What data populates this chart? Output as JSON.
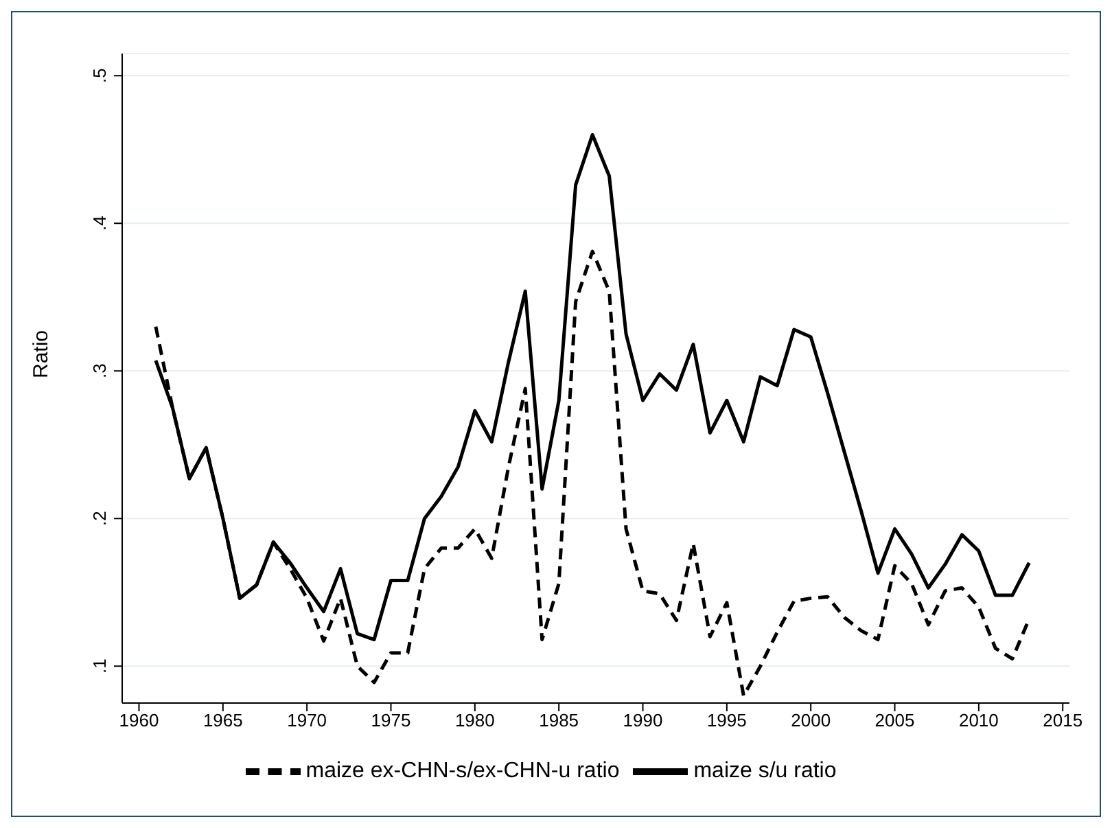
{
  "chart_data": {
    "type": "line",
    "ylabel": "Ratio",
    "x": [
      1961,
      1962,
      1963,
      1964,
      1965,
      1966,
      1967,
      1968,
      1969,
      1970,
      1971,
      1972,
      1973,
      1974,
      1975,
      1976,
      1977,
      1978,
      1979,
      1980,
      1981,
      1982,
      1983,
      1984,
      1985,
      1986,
      1987,
      1988,
      1989,
      1990,
      1991,
      1992,
      1993,
      1994,
      1995,
      1996,
      1997,
      1998,
      1999,
      2000,
      2001,
      2002,
      2003,
      2004,
      2005,
      2006,
      2007,
      2008,
      2009,
      2010,
      2011,
      2012,
      2013
    ],
    "series": [
      {
        "name": "maize s/u ratio",
        "color": "#000000",
        "line_style": "solid",
        "values": [
          0.307,
          0.275,
          0.227,
          0.248,
          0.2,
          0.146,
          0.155,
          0.184,
          0.17,
          0.153,
          0.137,
          0.166,
          0.122,
          0.118,
          0.158,
          0.158,
          0.2,
          0.215,
          0.235,
          0.273,
          0.252,
          0.306,
          0.354,
          0.22,
          0.28,
          0.426,
          0.46,
          0.432,
          0.325,
          0.28,
          0.298,
          0.287,
          0.318,
          0.258,
          0.28,
          0.252,
          0.296,
          0.29,
          0.328,
          0.323,
          0.285,
          0.245,
          0.205,
          0.163,
          0.193,
          0.176,
          0.153,
          0.169,
          0.189,
          0.178,
          0.148,
          0.148,
          0.17
        ]
      },
      {
        "name": "maize ex-CHN-s/ex-CHN-u ratio",
        "color": "#000000",
        "line_style": "dashed",
        "values": [
          0.33,
          0.275,
          0.227,
          0.248,
          0.2,
          0.146,
          0.155,
          0.184,
          0.166,
          0.146,
          0.117,
          0.146,
          0.1,
          0.089,
          0.109,
          0.109,
          0.166,
          0.18,
          0.18,
          0.193,
          0.173,
          0.235,
          0.288,
          0.118,
          0.156,
          0.347,
          0.381,
          0.354,
          0.193,
          0.151,
          0.149,
          0.131,
          0.183,
          0.12,
          0.143,
          0.08,
          0.1,
          0.123,
          0.144,
          0.146,
          0.147,
          0.133,
          0.124,
          0.118,
          0.168,
          0.156,
          0.128,
          0.151,
          0.153,
          0.14,
          0.112,
          0.105,
          0.132
        ]
      }
    ],
    "xlim": [
      1959,
      2015.4
    ],
    "xticks": [
      1960,
      1965,
      1970,
      1975,
      1980,
      1985,
      1990,
      1995,
      2000,
      2005,
      2010,
      2015
    ],
    "ylim": [
      0.075,
      0.515
    ],
    "yticks": [
      {
        "value": 0.1,
        "label": ".1"
      },
      {
        "value": 0.2,
        "label": ".2"
      },
      {
        "value": 0.3,
        "label": ".3"
      },
      {
        "value": 0.4,
        "label": ".4"
      },
      {
        "value": 0.5,
        "label": ".5"
      }
    ],
    "grid": "y",
    "legend": "bottom",
    "marker": "none"
  }
}
